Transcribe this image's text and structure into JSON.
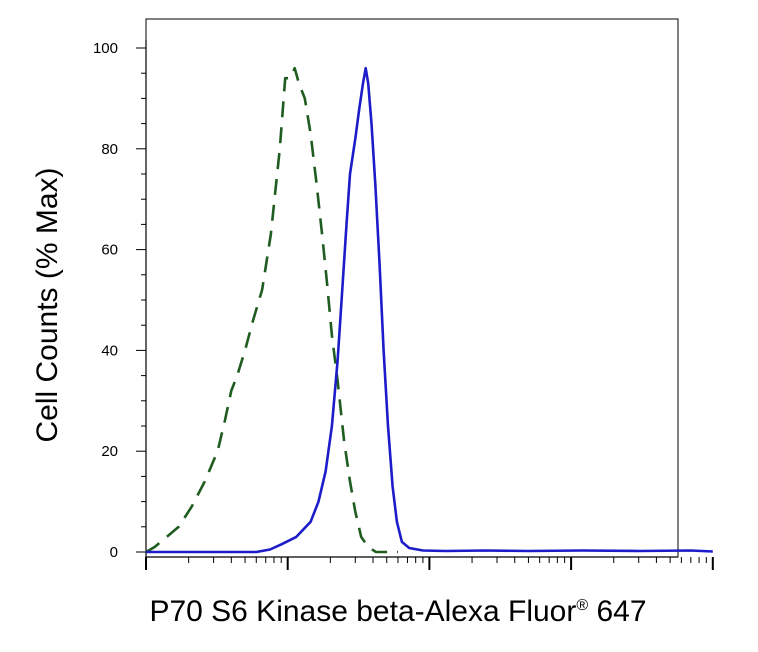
{
  "chart_data": {
    "type": "line",
    "xlabel_main": "P70 S6 Kinase beta-Alexa Fluor",
    "xlabel_sup": "®",
    "xlabel_tail": " 647",
    "ylabel": "Cell Counts (% Max)",
    "x_scale": "log",
    "xlim": [
      1,
      10000
    ],
    "ylim": [
      0,
      100
    ],
    "y_ticks": [
      "0",
      "20",
      "40",
      "60",
      "80",
      "100"
    ],
    "grid": false,
    "series": [
      {
        "style": "dashed",
        "color": "#1f5c1f",
        "points": [
          [
            1.0,
            0
          ],
          [
            1.15,
            1
          ],
          [
            1.4,
            3
          ],
          [
            1.7,
            5
          ],
          [
            2.1,
            9
          ],
          [
            2.6,
            14
          ],
          [
            3.2,
            20
          ],
          [
            3.6,
            26
          ],
          [
            4.0,
            32
          ],
          [
            4.4,
            35
          ],
          [
            5.0,
            40
          ],
          [
            5.7,
            46
          ],
          [
            6.6,
            52
          ],
          [
            7.6,
            63
          ],
          [
            8.8,
            80
          ],
          [
            9.6,
            94
          ],
          [
            10.4,
            94
          ],
          [
            11.2,
            96
          ],
          [
            12.0,
            93
          ],
          [
            13.2,
            90
          ],
          [
            14.5,
            83
          ],
          [
            16.0,
            73
          ],
          [
            17.5,
            63
          ],
          [
            19.0,
            53
          ],
          [
            20.5,
            43
          ],
          [
            22.5,
            34
          ],
          [
            25.0,
            22
          ],
          [
            27.5,
            14
          ],
          [
            30.0,
            8
          ],
          [
            33.0,
            3
          ],
          [
            37.0,
            1
          ],
          [
            42.0,
            0
          ],
          [
            60.0,
            0
          ]
        ]
      },
      {
        "style": "solid",
        "color": "#1c1cc8",
        "points": [
          [
            1.0,
            0
          ],
          [
            3.0,
            0
          ],
          [
            6.0,
            0
          ],
          [
            7.5,
            0.5
          ],
          [
            9.0,
            1.5
          ],
          [
            11.5,
            3
          ],
          [
            14.5,
            6
          ],
          [
            16.5,
            10
          ],
          [
            18.5,
            16
          ],
          [
            20.5,
            25
          ],
          [
            22.5,
            38
          ],
          [
            24.0,
            50
          ],
          [
            26.0,
            65
          ],
          [
            27.5,
            75
          ],
          [
            30.0,
            82
          ],
          [
            32.0,
            88
          ],
          [
            34.0,
            93
          ],
          [
            35.5,
            96
          ],
          [
            37.0,
            93
          ],
          [
            39.0,
            85
          ],
          [
            41.5,
            73
          ],
          [
            44.5,
            57
          ],
          [
            47.5,
            40
          ],
          [
            51.0,
            25
          ],
          [
            55.0,
            13
          ],
          [
            59.0,
            6
          ],
          [
            64.0,
            2
          ],
          [
            72.0,
            0.8
          ],
          [
            90.0,
            0.3
          ],
          [
            130.0,
            0.2
          ],
          [
            250.0,
            0.3
          ],
          [
            500.0,
            0.2
          ],
          [
            1200.0,
            0.3
          ],
          [
            3000.0,
            0.2
          ],
          [
            7000.0,
            0.3
          ],
          [
            10000.0,
            0.1
          ]
        ]
      }
    ]
  }
}
